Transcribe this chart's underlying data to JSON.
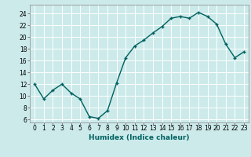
{
  "x": [
    0,
    1,
    2,
    3,
    4,
    5,
    6,
    7,
    8,
    9,
    10,
    11,
    12,
    13,
    14,
    15,
    16,
    17,
    18,
    19,
    20,
    21,
    22,
    23
  ],
  "y": [
    12,
    9.5,
    11,
    12,
    10.5,
    9.5,
    6.5,
    6.2,
    7.5,
    12.2,
    16.5,
    18.5,
    19.5,
    20.7,
    21.8,
    23.2,
    23.5,
    23.2,
    24.2,
    23.5,
    22.2,
    18.8,
    16.5,
    17.5
  ],
  "line_color": "#006060",
  "marker": "+",
  "marker_size": 3,
  "background_color": "#cceaea",
  "grid_color": "#b0d8d8",
  "xlabel": "Humidex (Indice chaleur)",
  "xlim": [
    -0.5,
    23.5
  ],
  "ylim": [
    5.5,
    25.5
  ],
  "yticks": [
    6,
    8,
    10,
    12,
    14,
    16,
    18,
    20,
    22,
    24
  ],
  "xtick_labels": [
    "0",
    "1",
    "2",
    "3",
    "4",
    "5",
    "6",
    "7",
    "8",
    "9",
    "10",
    "11",
    "12",
    "13",
    "14",
    "15",
    "16",
    "17",
    "18",
    "19",
    "20",
    "21",
    "22",
    "23"
  ],
  "tick_fontsize": 5.5,
  "xlabel_fontsize": 6.5,
  "line_width": 1.0
}
